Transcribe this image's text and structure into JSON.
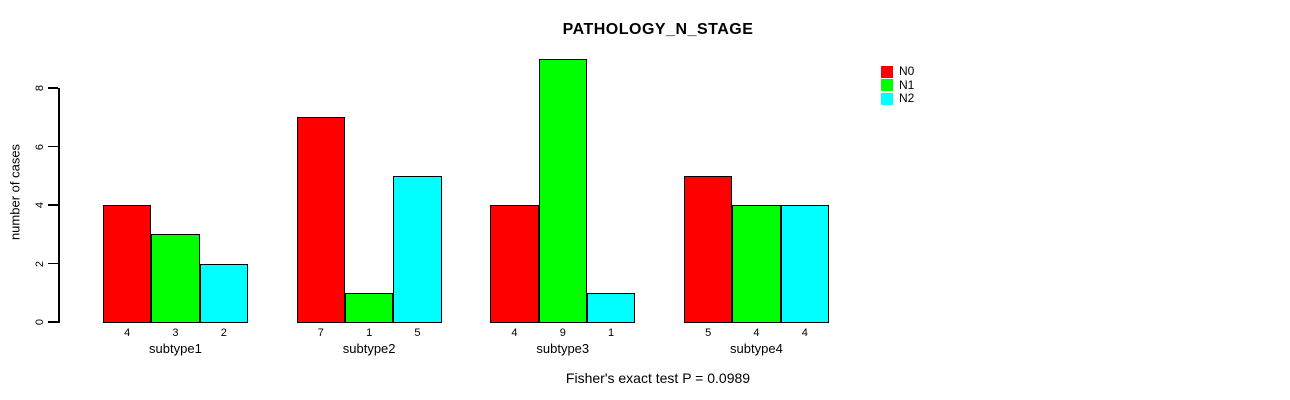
{
  "chart_data": {
    "type": "bar",
    "title": "PATHOLOGY_N_STAGE",
    "ylabel": "number of cases",
    "xlabel": "",
    "categories": [
      "subtype1",
      "subtype2",
      "subtype3",
      "subtype4"
    ],
    "series": [
      {
        "name": "N0",
        "color": "#FF0000",
        "values": [
          4,
          7,
          4,
          5
        ]
      },
      {
        "name": "N1",
        "color": "#00FF00",
        "values": [
          3,
          1,
          9,
          4
        ]
      },
      {
        "name": "N2",
        "color": "#00FFFF",
        "values": [
          2,
          5,
          1,
          4
        ]
      }
    ],
    "yticks": [
      0,
      2,
      4,
      6,
      8
    ],
    "ylim": [
      0,
      9
    ],
    "grid": false,
    "bar_value_labels_shown": true,
    "legend_position": "top-right",
    "legend_entries": [
      "N0",
      "N1",
      "N2"
    ],
    "annotation": "Fisher's exact test P = 0.0989"
  },
  "colors": {
    "background": "#FFFFFF",
    "axis": "#000000",
    "text": "#000000",
    "bar_border": "#000000"
  }
}
